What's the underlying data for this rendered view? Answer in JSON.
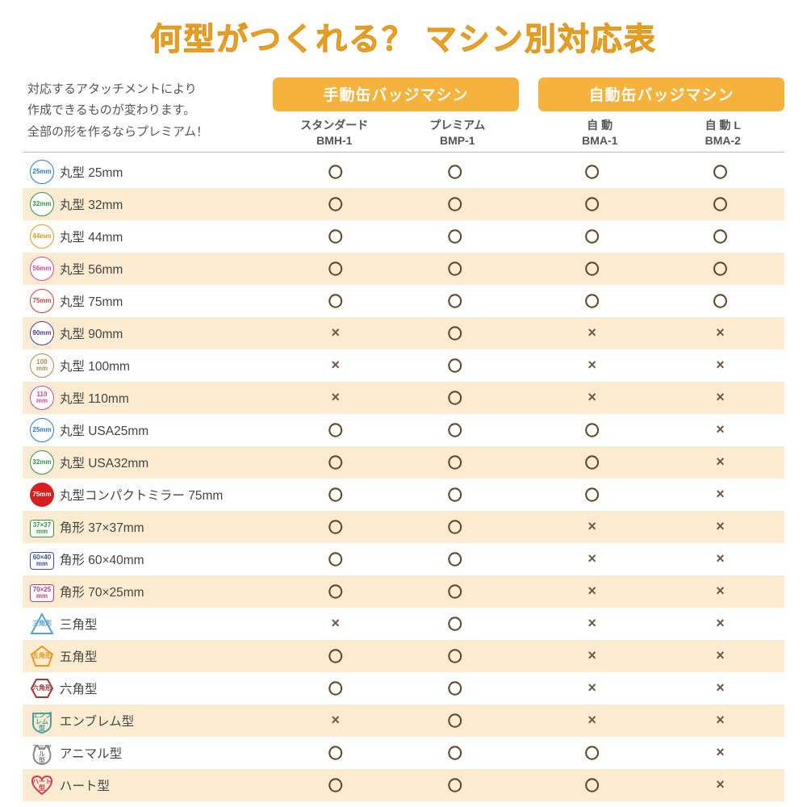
{
  "title": "何型がつくれる？ マシン別対応表",
  "lead": {
    "l1": "対応するアタッチメントにより",
    "l2": "作成できるものが変わります。",
    "l3": "全部の形を作るならプレミアム！"
  },
  "groups": [
    {
      "label": "手動缶バッジマシン",
      "cols": [
        {
          "name": "スタンダード",
          "model": "BMH-1"
        },
        {
          "name": "プレミアム",
          "model": "BMP-1"
        }
      ]
    },
    {
      "label": "自動缶バッジマシン",
      "cols": [
        {
          "name": "自 動",
          "model": "BMA-1"
        },
        {
          "name": "自 動 L",
          "model": "BMA-2"
        }
      ]
    }
  ],
  "yes_mark": "〇",
  "no_mark": "×",
  "colors": {
    "accent": "#f5b23c",
    "title": "#f0a938",
    "stripe": "#fbecd1",
    "yes": "#5d4a2a",
    "no": "#6a5a47"
  },
  "rows": [
    {
      "icon": {
        "shape": "circ",
        "color": "#2a7bd6",
        "txt": "25mm"
      },
      "label": "丸型 25mm",
      "v": [
        "y",
        "y",
        "y",
        "y"
      ]
    },
    {
      "icon": {
        "shape": "circ",
        "color": "#2f9a3e",
        "txt": "32mm"
      },
      "label": "丸型 32mm",
      "v": [
        "y",
        "y",
        "y",
        "y"
      ]
    },
    {
      "icon": {
        "shape": "circ",
        "color": "#e99a1e",
        "txt": "44mm"
      },
      "label": "丸型 44mm",
      "v": [
        "y",
        "y",
        "y",
        "y"
      ]
    },
    {
      "icon": {
        "shape": "circ",
        "color": "#e44a8a",
        "txt": "56mm"
      },
      "label": "丸型 56mm",
      "v": [
        "y",
        "y",
        "y",
        "y"
      ]
    },
    {
      "icon": {
        "shape": "circ",
        "color": "#d63a3a",
        "txt": "75mm"
      },
      "label": "丸型 75mm",
      "v": [
        "y",
        "y",
        "y",
        "y"
      ]
    },
    {
      "icon": {
        "shape": "circ",
        "color": "#4a3fa0",
        "txt": "90mm"
      },
      "label": "丸型 90mm",
      "v": [
        "n",
        "y",
        "n",
        "n"
      ]
    },
    {
      "icon": {
        "shape": "circ",
        "color": "#b08a4a",
        "txt": "100\nmm"
      },
      "label": "丸型 100mm",
      "v": [
        "n",
        "y",
        "n",
        "n"
      ]
    },
    {
      "icon": {
        "shape": "circ",
        "color": "#d24aa0",
        "txt": "110\nmm"
      },
      "label": "丸型 110mm",
      "v": [
        "n",
        "y",
        "n",
        "n"
      ]
    },
    {
      "icon": {
        "shape": "circ",
        "color": "#2a7bd6",
        "txt": "25mm"
      },
      "label": "丸型 USA25mm",
      "v": [
        "y",
        "y",
        "y",
        "n"
      ]
    },
    {
      "icon": {
        "shape": "circ",
        "color": "#2f9a3e",
        "txt": "32mm"
      },
      "label": "丸型 USA32mm",
      "v": [
        "y",
        "y",
        "y",
        "n"
      ]
    },
    {
      "icon": {
        "shape": "fill",
        "color": "#d62020",
        "txt": "75mm"
      },
      "label": "丸型コンパクトミラー 75mm",
      "v": [
        "y",
        "y",
        "y",
        "n"
      ]
    },
    {
      "icon": {
        "shape": "sq",
        "color": "#2f9a3e",
        "txt": "37×37\nmm"
      },
      "label": "角形 37×37mm",
      "v": [
        "y",
        "y",
        "n",
        "n"
      ]
    },
    {
      "icon": {
        "shape": "sq",
        "color": "#3a4fa0",
        "txt": "60×40\nmm"
      },
      "label": "角形 60×40mm",
      "v": [
        "y",
        "y",
        "n",
        "n"
      ]
    },
    {
      "icon": {
        "shape": "sq",
        "color": "#c23a7a",
        "txt": "70×25\nmm"
      },
      "label": "角形 70×25mm",
      "v": [
        "y",
        "y",
        "n",
        "n"
      ]
    },
    {
      "icon": {
        "shape": "tri",
        "color": "#5aa0d6",
        "txt": "三角形"
      },
      "label": "三角型",
      "v": [
        "n",
        "y",
        "n",
        "n"
      ]
    },
    {
      "icon": {
        "shape": "pent",
        "color": "#e99a1e",
        "txt": "五角形"
      },
      "label": "五角型",
      "v": [
        "y",
        "y",
        "n",
        "n"
      ]
    },
    {
      "icon": {
        "shape": "hex",
        "color": "#a03a3a",
        "txt": "六角形"
      },
      "label": "六角型",
      "v": [
        "y",
        "y",
        "n",
        "n"
      ]
    },
    {
      "icon": {
        "shape": "emb",
        "color": "#4aa0a0",
        "txt": "エンブレム\n型"
      },
      "label": "エンブレム型",
      "v": [
        "n",
        "y",
        "n",
        "n"
      ]
    },
    {
      "icon": {
        "shape": "cat",
        "color": "#888888",
        "txt": "アニマル\n型"
      },
      "label": "アニマル型",
      "v": [
        "y",
        "y",
        "y",
        "n"
      ]
    },
    {
      "icon": {
        "shape": "heart",
        "color": "#d63a5a",
        "txt": "ハート型"
      },
      "label": "ハート型",
      "v": [
        "y",
        "y",
        "y",
        "n"
      ]
    }
  ]
}
